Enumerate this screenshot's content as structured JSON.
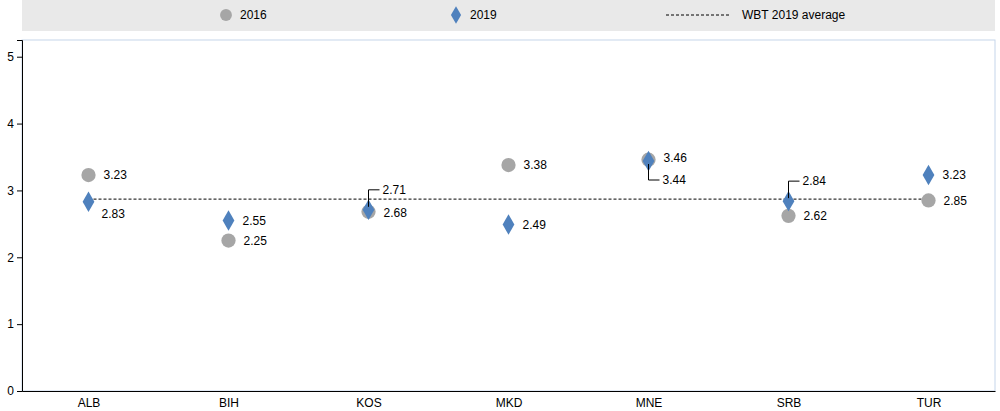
{
  "chart_data": {
    "type": "dot",
    "categories": [
      "ALB",
      "BIH",
      "KOS",
      "MKD",
      "MNE",
      "SRB",
      "TUR"
    ],
    "series": [
      {
        "name": "2016",
        "color": "#a6a6a6",
        "marker": "circle",
        "values": [
          3.23,
          2.25,
          2.68,
          3.38,
          3.46,
          2.62,
          2.85
        ]
      },
      {
        "name": "2019",
        "color": "#4f81bd",
        "marker": "diamond",
        "values": [
          2.83,
          2.55,
          2.71,
          2.49,
          3.44,
          2.84,
          3.23
        ]
      }
    ],
    "reference_line": {
      "label": "WBT 2019 average",
      "value": 2.87,
      "color": "#000000",
      "line_style": "dashed"
    },
    "ylim": [
      0,
      5.25
    ],
    "yticks": [
      0,
      1,
      2,
      3,
      4,
      5
    ],
    "grid": false,
    "legend": "top",
    "data_labels": true
  }
}
